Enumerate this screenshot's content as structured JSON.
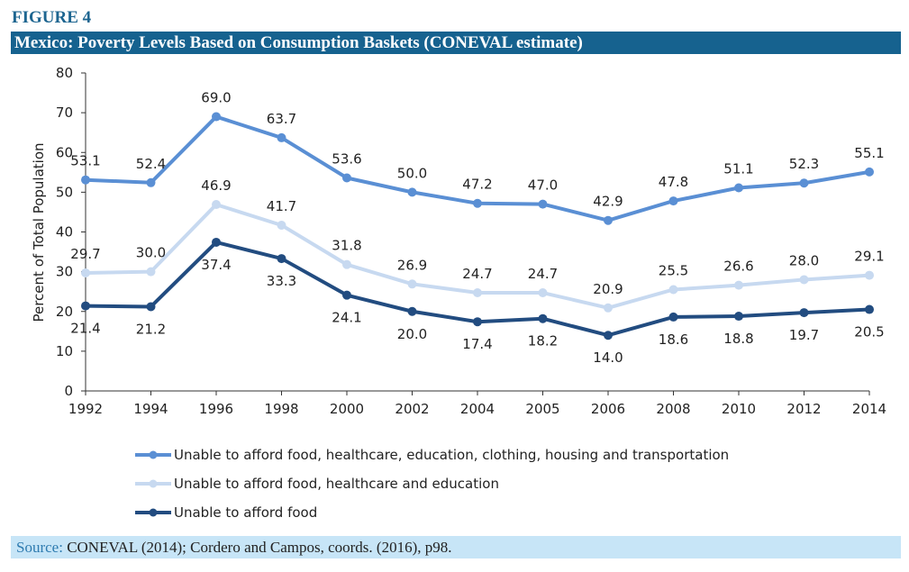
{
  "figure_label": "FIGURE 4",
  "source": {
    "label": "Source:",
    "text": " CONEVAL (2014); Cordero and Campos, coords. (2016), p98."
  },
  "chart_data": {
    "type": "line",
    "title": "Mexico: Poverty Levels Based on Consumption Baskets (CONEVAL estimate)",
    "xlabel": "",
    "ylabel": "Percent of Total Population",
    "ylim": [
      0,
      80
    ],
    "yticks": [
      0,
      10,
      20,
      30,
      40,
      50,
      60,
      70,
      80
    ],
    "grid": false,
    "legend_position": "bottom",
    "categories": [
      "1992",
      "1994",
      "1996",
      "1998",
      "2000",
      "2002",
      "2004",
      "2005",
      "2006",
      "2008",
      "2010",
      "2012",
      "2014"
    ],
    "series": [
      {
        "name": "Unable to afford food, healthcare, education, clothing, housing and transportation",
        "color": "#5a8fd4",
        "label_pos": "above",
        "values": [
          53.1,
          52.4,
          69.0,
          63.7,
          53.6,
          50.0,
          47.2,
          47.0,
          42.9,
          47.8,
          51.1,
          52.3,
          55.1
        ]
      },
      {
        "name": "Unable to afford food, healthcare and education",
        "color": "#c7d9f0",
        "label_pos": "above",
        "values": [
          29.7,
          30.0,
          46.9,
          41.7,
          31.8,
          26.9,
          24.7,
          24.7,
          20.9,
          25.5,
          26.6,
          28.0,
          29.1
        ]
      },
      {
        "name": "Unable to afford food",
        "color": "#224c80",
        "label_pos": "below",
        "values": [
          21.4,
          21.2,
          37.4,
          33.3,
          24.1,
          20.0,
          17.4,
          18.2,
          14.0,
          18.6,
          18.8,
          19.7,
          20.5
        ]
      }
    ]
  }
}
